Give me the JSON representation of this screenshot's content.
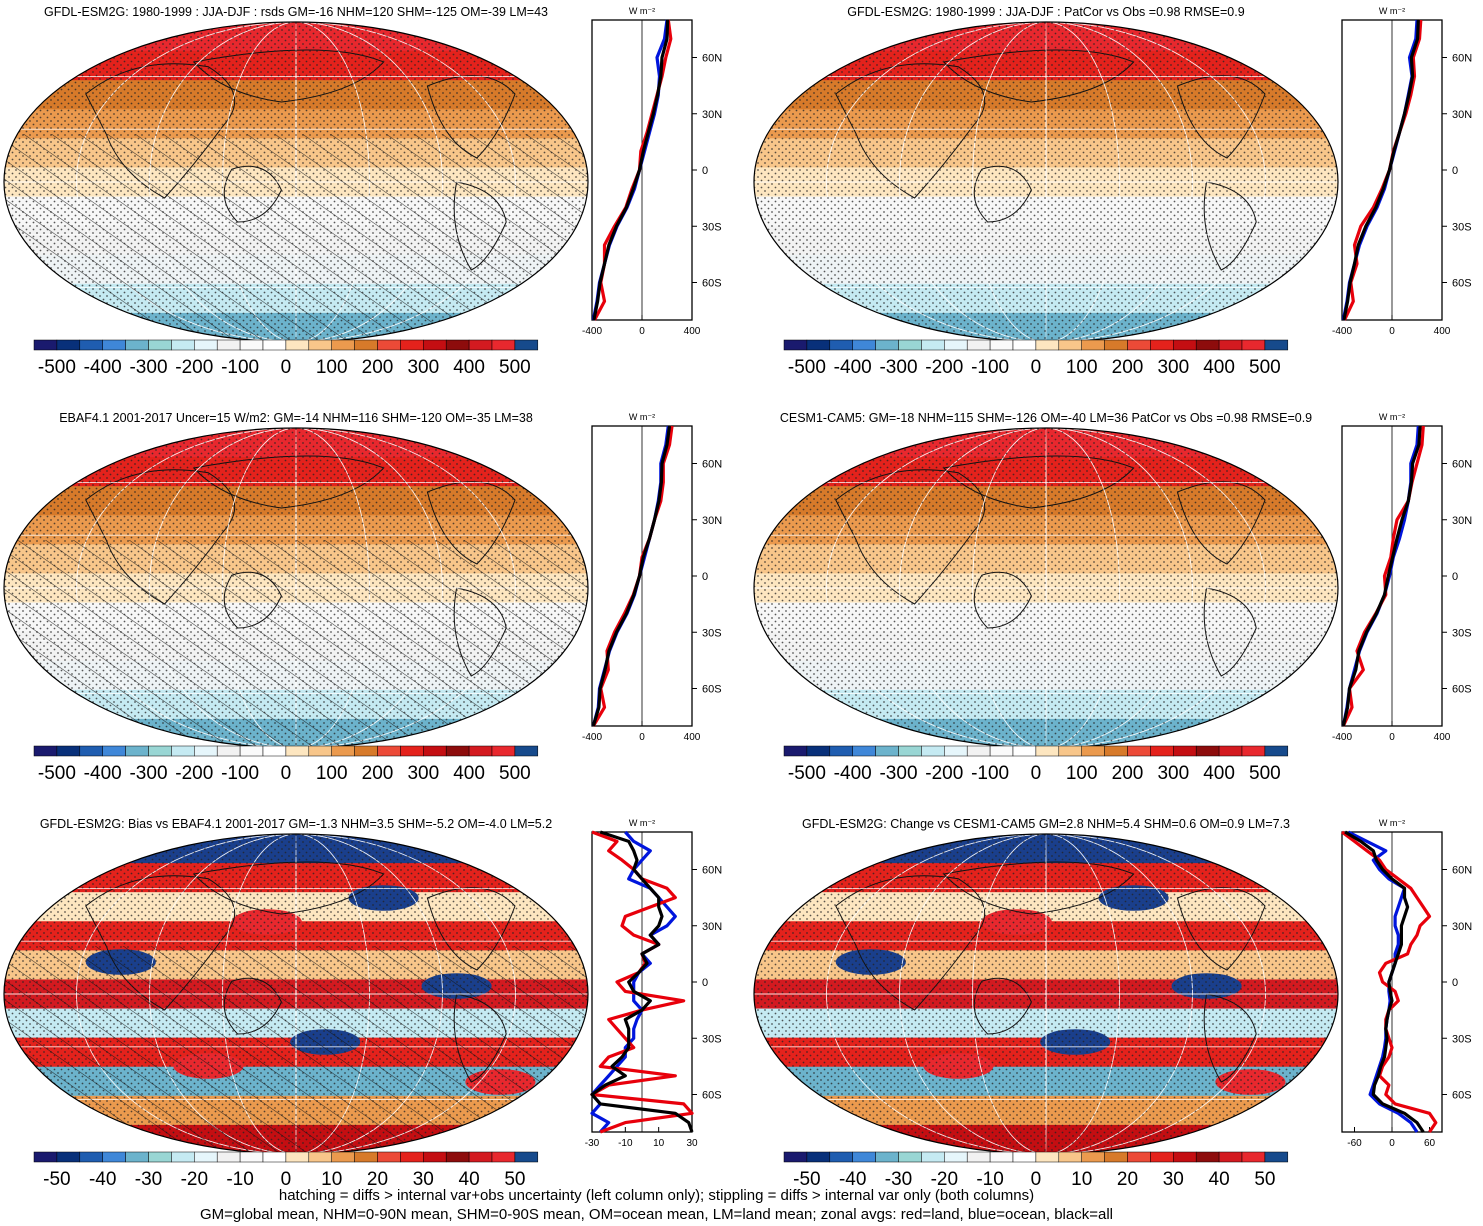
{
  "figure": {
    "footnotes": [
      "hatching = diffs > internal var+obs uncertainty (left column only); stippling = diffs > internal var only (both columns)",
      "GM=global mean, NHM=0-90N mean, SHM=0-90S mean, OM=ocean mean, LM=land mean; zonal avgs: red=land, blue=ocean, black=all"
    ]
  },
  "chart_data": [
    {
      "type": "heatmap",
      "title": "GFDL-ESM2G: 1980-1999 : JJA-DJF : rsds GM=-16 NHM=120 SHM=-125 OM=-39 LM=43",
      "map_pattern": "abs",
      "hatching": true,
      "colorbar_labels": [
        "-500",
        "-400",
        "-300",
        "-200",
        "-100",
        "0",
        "100",
        "200",
        "300",
        "400",
        "500"
      ],
      "zonal_panel": {
        "unit": "W m⁻²",
        "xlim": [
          -400,
          400
        ],
        "xticks": [
          "-400",
          "0",
          "400"
        ],
        "yticks": [
          "60N",
          "30N",
          "0",
          "30S",
          "60S"
        ],
        "lat": [
          80,
          70,
          60,
          50,
          40,
          30,
          20,
          10,
          0,
          -10,
          -20,
          -30,
          -40,
          -50,
          -60,
          -70,
          -80
        ],
        "series": [
          {
            "name": "land",
            "color": "#e8000b",
            "values": [
              210,
              230,
              190,
              160,
              120,
              80,
              40,
              -10,
              -20,
              -80,
              -130,
              -220,
              -300,
              -300,
              -330,
              -300,
              -380
            ]
          },
          {
            "name": "ocean",
            "color": "#0015dd",
            "values": [
              200,
              180,
              120,
              140,
              130,
              100,
              60,
              20,
              -20,
              -60,
              -120,
              -200,
              -260,
              -300,
              -340,
              -360,
              -390
            ]
          },
          {
            "name": "all",
            "color": "#000000",
            "values": [
              205,
              200,
              160,
              150,
              125,
              90,
              50,
              10,
              -20,
              -70,
              -125,
              -205,
              -265,
              -300,
              -335,
              -355,
              -385
            ]
          }
        ]
      }
    },
    {
      "type": "heatmap",
      "title": "GFDL-ESM2G: 1980-1999 : JJA-DJF : PatCor vs Obs =0.98 RMSE=0.9",
      "map_pattern": "abs",
      "hatching": false,
      "colorbar_labels": [
        "-500",
        "-400",
        "-300",
        "-200",
        "-100",
        "0",
        "100",
        "200",
        "300",
        "400",
        "500"
      ],
      "zonal_panel": {
        "unit": "W m⁻²",
        "xlim": [
          -400,
          400
        ],
        "xticks": [
          "-400",
          "0",
          "400"
        ],
        "yticks": [
          "60N",
          "30N",
          "0",
          "30S",
          "60S"
        ],
        "lat": [
          80,
          70,
          60,
          50,
          40,
          30,
          20,
          10,
          0,
          -10,
          -20,
          -30,
          -40,
          -50,
          -60,
          -70,
          -80
        ],
        "series": [
          {
            "name": "land",
            "color": "#e8000b",
            "values": [
              230,
              220,
              170,
              180,
              150,
              110,
              60,
              10,
              -20,
              -80,
              -150,
              -250,
              -300,
              -280,
              -330,
              -310,
              -380
            ]
          },
          {
            "name": "ocean",
            "color": "#0015dd",
            "values": [
              200,
              190,
              140,
              160,
              130,
              100,
              60,
              20,
              -20,
              -60,
              -120,
              -200,
              -260,
              -300,
              -340,
              -360,
              -390
            ]
          },
          {
            "name": "all",
            "color": "#000000",
            "values": [
              210,
              205,
              155,
              165,
              135,
              100,
              60,
              15,
              -20,
              -70,
              -130,
              -210,
              -270,
              -300,
              -335,
              -355,
              -385
            ]
          }
        ]
      }
    },
    {
      "type": "heatmap",
      "title": "EBAF4.1 2001-2017 Uncer=15 W/m2: GM=-14 NHM=116 SHM=-120 OM=-35 LM=38",
      "map_pattern": "abs",
      "hatching": true,
      "colorbar_labels": [
        "-500",
        "-400",
        "-300",
        "-200",
        "-100",
        "0",
        "100",
        "200",
        "300",
        "400",
        "500"
      ],
      "zonal_panel": {
        "unit": "W m⁻²",
        "xlim": [
          -400,
          400
        ],
        "xticks": [
          "-400",
          "0",
          "400"
        ],
        "yticks": [
          "60N",
          "30N",
          "0",
          "30S",
          "60S"
        ],
        "lat": [
          80,
          70,
          60,
          50,
          40,
          30,
          20,
          10,
          0,
          -10,
          -20,
          -30,
          -40,
          -50,
          -60,
          -70,
          -80
        ],
        "series": [
          {
            "name": "land",
            "color": "#e8000b",
            "values": [
              240,
              220,
              170,
              170,
              150,
              100,
              60,
              0,
              -20,
              -70,
              -140,
              -220,
              -280,
              -270,
              -330,
              -300,
              -390
            ]
          },
          {
            "name": "ocean",
            "color": "#0015dd",
            "values": [
              210,
              190,
              150,
              150,
              130,
              100,
              60,
              20,
              -20,
              -60,
              -120,
              -200,
              -260,
              -300,
              -340,
              -350,
              -390
            ]
          },
          {
            "name": "all",
            "color": "#000000",
            "values": [
              220,
              200,
              160,
              155,
              135,
              100,
              60,
              10,
              -20,
              -65,
              -125,
              -205,
              -265,
              -295,
              -335,
              -345,
              -390
            ]
          }
        ]
      }
    },
    {
      "type": "heatmap",
      "title": "CESM1-CAM5: GM=-18 NHM=115 SHM=-126 OM=-40 LM=36 PatCor vs Obs =0.98 RMSE=0.9",
      "map_pattern": "abs",
      "hatching": false,
      "colorbar_labels": [
        "-500",
        "-400",
        "-300",
        "-200",
        "-100",
        "0",
        "100",
        "200",
        "300",
        "400",
        "500"
      ],
      "zonal_panel": {
        "unit": "W m⁻²",
        "xlim": [
          -400,
          400
        ],
        "xticks": [
          "-400",
          "0",
          "400"
        ],
        "yticks": [
          "60N",
          "30N",
          "0",
          "30S",
          "60S"
        ],
        "lat": [
          80,
          70,
          60,
          50,
          40,
          30,
          20,
          10,
          0,
          -10,
          -20,
          -30,
          -40,
          -50,
          -60,
          -70,
          -80
        ],
        "series": [
          {
            "name": "land",
            "color": "#e8000b",
            "values": [
              250,
              240,
              200,
              160,
              130,
              40,
              10,
              -10,
              -60,
              -50,
              -130,
              -220,
              -280,
              -230,
              -340,
              -320,
              -390
            ]
          },
          {
            "name": "ocean",
            "color": "#0015dd",
            "values": [
              210,
              200,
              150,
              150,
              130,
              100,
              60,
              10,
              -20,
              -60,
              -120,
              -200,
              -260,
              -300,
              -340,
              -360,
              -390
            ]
          },
          {
            "name": "all",
            "color": "#000000",
            "values": [
              225,
              215,
              165,
              155,
              130,
              80,
              40,
              5,
              -30,
              -60,
              -125,
              -205,
              -265,
              -290,
              -340,
              -355,
              -390
            ]
          }
        ]
      }
    },
    {
      "type": "heatmap",
      "title": "GFDL-ESM2G: Bias vs EBAF4.1 2001-2017 GM=-1.3 NHM=3.5 SHM=-5.2 OM=-4.0 LM=5.2",
      "map_pattern": "diff",
      "hatching": true,
      "colorbar_labels": [
        "-50",
        "-40",
        "-30",
        "-20",
        "-10",
        "0",
        "10",
        "20",
        "30",
        "40",
        "50"
      ],
      "zonal_panel": {
        "unit": "W m⁻²",
        "xlim": [
          -30,
          30
        ],
        "xticks": [
          "-30",
          "-10",
          "10",
          "30"
        ],
        "yticks": [
          "60N",
          "30N",
          "0",
          "30S",
          "60S"
        ],
        "lat": [
          80,
          75,
          70,
          65,
          60,
          55,
          50,
          45,
          40,
          35,
          30,
          25,
          20,
          15,
          10,
          5,
          0,
          -5,
          -10,
          -15,
          -20,
          -25,
          -30,
          -35,
          -40,
          -45,
          -50,
          -55,
          -60,
          -65,
          -70,
          -75,
          -80
        ],
        "series": [
          {
            "name": "land",
            "color": "#e8000b",
            "values": [
              -30,
              -15,
              -20,
              -12,
              -5,
              0,
              15,
              20,
              5,
              -10,
              -12,
              -5,
              10,
              0,
              2,
              -2,
              -15,
              -10,
              25,
              0,
              -20,
              -15,
              -10,
              -5,
              -20,
              -25,
              20,
              -20,
              -30,
              25,
              30,
              -10,
              -25
            ]
          },
          {
            "name": "ocean",
            "color": "#0015dd",
            "values": [
              -10,
              -5,
              5,
              0,
              -5,
              -8,
              5,
              10,
              15,
              20,
              15,
              5,
              10,
              0,
              5,
              -2,
              -5,
              -5,
              -5,
              0,
              -3,
              -5,
              -5,
              -10,
              -10,
              -15,
              -20,
              -25,
              -30,
              -25,
              -30,
              -20,
              -25
            ]
          },
          {
            "name": "all",
            "color": "#000000",
            "values": [
              -25,
              -8,
              -5,
              -3,
              -5,
              0,
              5,
              10,
              10,
              12,
              10,
              5,
              10,
              0,
              3,
              -2,
              -8,
              -5,
              5,
              0,
              -10,
              -8,
              -8,
              -8,
              -12,
              -18,
              -10,
              -22,
              -30,
              -25,
              20,
              28,
              30
            ]
          }
        ]
      }
    },
    {
      "type": "heatmap",
      "title": "GFDL-ESM2G: Change vs CESM1-CAM5 GM=2.8 NHM=5.4 SHM=0.6 OM=0.9 LM=7.3",
      "map_pattern": "diff",
      "hatching": false,
      "colorbar_labels": [
        "-50",
        "-40",
        "-30",
        "-20",
        "-10",
        "0",
        "10",
        "20",
        "30",
        "40",
        "50"
      ],
      "zonal_panel": {
        "unit": "W m⁻²",
        "xlim": [
          -80,
          80
        ],
        "xticks": [
          "-60",
          "0",
          "60"
        ],
        "yticks": [
          "60N",
          "30N",
          "0",
          "30S",
          "60S"
        ],
        "lat": [
          80,
          75,
          70,
          65,
          60,
          55,
          50,
          45,
          40,
          35,
          30,
          25,
          20,
          15,
          10,
          5,
          0,
          -5,
          -10,
          -15,
          -20,
          -25,
          -30,
          -35,
          -40,
          -45,
          -50,
          -55,
          -60,
          -65,
          -70,
          -75,
          -80
        ],
        "series": [
          {
            "name": "land",
            "color": "#e8000b",
            "values": [
              -80,
              -60,
              -40,
              -20,
              -10,
              10,
              30,
              40,
              50,
              60,
              45,
              40,
              30,
              25,
              -10,
              -20,
              -15,
              5,
              10,
              -5,
              -10,
              -10,
              -5,
              0,
              -5,
              -15,
              -20,
              -5,
              -10,
              5,
              60,
              70,
              60
            ]
          },
          {
            "name": "ocean",
            "color": "#0015dd",
            "values": [
              -70,
              -40,
              -10,
              -30,
              -20,
              -5,
              20,
              15,
              10,
              5,
              5,
              10,
              10,
              5,
              5,
              0,
              -5,
              -5,
              -3,
              -5,
              -8,
              -10,
              -10,
              -12,
              -15,
              -20,
              -25,
              -30,
              -35,
              -20,
              10,
              30,
              40
            ]
          },
          {
            "name": "all",
            "color": "#000000",
            "values": [
              -75,
              -50,
              -30,
              -25,
              -15,
              0,
              20,
              20,
              25,
              20,
              15,
              15,
              15,
              10,
              5,
              0,
              -5,
              -3,
              0,
              -5,
              -8,
              -10,
              -8,
              -10,
              -12,
              -18,
              -22,
              -28,
              -30,
              -15,
              20,
              40,
              50
            ]
          }
        ]
      }
    }
  ]
}
